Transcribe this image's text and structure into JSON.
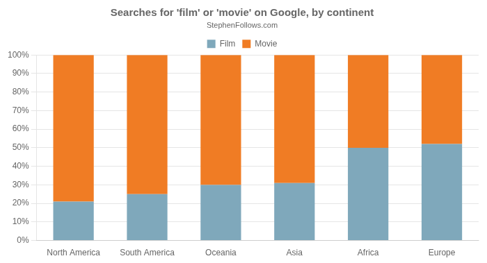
{
  "chart_data": {
    "type": "bar",
    "title": "Searches for 'film' or 'movie' on Google, by continent",
    "subtitle": "StephenFollows.com",
    "categories": [
      "North America",
      "South America",
      "Oceania",
      "Asia",
      "Africa",
      "Europe"
    ],
    "series": [
      {
        "name": "Film",
        "color": "#7fa8bb",
        "values": [
          21,
          25,
          30,
          31,
          50,
          52
        ]
      },
      {
        "name": "Movie",
        "color": "#f07c24",
        "values": [
          79,
          75,
          70,
          69,
          50,
          48
        ]
      }
    ],
    "stacked": true,
    "ylim": [
      0,
      100
    ],
    "yticks": [
      {
        "value": 0,
        "label": "0%"
      },
      {
        "value": 10,
        "label": "10%"
      },
      {
        "value": 20,
        "label": "20%"
      },
      {
        "value": 30,
        "label": "30%"
      },
      {
        "value": 40,
        "label": "40%"
      },
      {
        "value": 50,
        "label": "50%"
      },
      {
        "value": 60,
        "label": "60%"
      },
      {
        "value": 70,
        "label": "70%"
      },
      {
        "value": 80,
        "label": "80%"
      },
      {
        "value": 90,
        "label": "90%"
      },
      {
        "value": 100,
        "label": "100%"
      }
    ],
    "grid": true,
    "legend": "top"
  }
}
